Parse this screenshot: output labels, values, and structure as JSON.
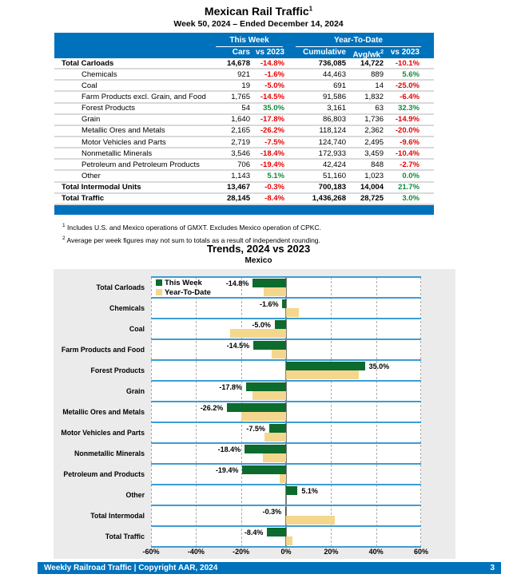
{
  "header": {
    "title": "Mexican Rail Traffic",
    "title_sup": "1",
    "subtitle": "Week 50, 2024 – Ended December 14, 2024"
  },
  "table": {
    "group_this_week": "This Week",
    "group_ytd": "Year-To-Date",
    "col_cars": "Cars",
    "col_vs2023_tw": "vs 2023",
    "col_cumulative": "Cumulative",
    "col_avgwk": "Avg/wk",
    "col_avgwk_sup": "2",
    "col_vs2023_ytd": "vs 2023",
    "rows": [
      {
        "label": "Total Carloads",
        "cars": "14,678",
        "tw": "-14.8%",
        "cum": "736,085",
        "avg": "14,722",
        "ytd": "-10.1%",
        "bold": true,
        "indent": false
      },
      {
        "label": "Chemicals",
        "cars": "921",
        "tw": "-1.6%",
        "cum": "44,463",
        "avg": "889",
        "ytd": "5.6%",
        "bold": false,
        "indent": true
      },
      {
        "label": "Coal",
        "cars": "19",
        "tw": "-5.0%",
        "cum": "691",
        "avg": "14",
        "ytd": "-25.0%",
        "bold": false,
        "indent": true
      },
      {
        "label": "Farm Products excl. Grain, and Food",
        "cars": "1,765",
        "tw": "-14.5%",
        "cum": "91,586",
        "avg": "1,832",
        "ytd": "-6.4%",
        "bold": false,
        "indent": true
      },
      {
        "label": "Forest Products",
        "cars": "54",
        "tw": "35.0%",
        "cum": "3,161",
        "avg": "63",
        "ytd": "32.3%",
        "bold": false,
        "indent": true
      },
      {
        "label": "Grain",
        "cars": "1,640",
        "tw": "-17.8%",
        "cum": "86,803",
        "avg": "1,736",
        "ytd": "-14.9%",
        "bold": false,
        "indent": true
      },
      {
        "label": "Metallic Ores and Metals",
        "cars": "2,165",
        "tw": "-26.2%",
        "cum": "118,124",
        "avg": "2,362",
        "ytd": "-20.0%",
        "bold": false,
        "indent": true
      },
      {
        "label": "Motor Vehicles and Parts",
        "cars": "2,719",
        "tw": "-7.5%",
        "cum": "124,740",
        "avg": "2,495",
        "ytd": "-9.6%",
        "bold": false,
        "indent": true
      },
      {
        "label": "Nonmetallic Minerals",
        "cars": "3,546",
        "tw": "-18.4%",
        "cum": "172,933",
        "avg": "3,459",
        "ytd": "-10.4%",
        "bold": false,
        "indent": true
      },
      {
        "label": "Petroleum and Petroleum Products",
        "cars": "706",
        "tw": "-19.4%",
        "cum": "42,424",
        "avg": "848",
        "ytd": "-2.7%",
        "bold": false,
        "indent": true
      },
      {
        "label": "Other",
        "cars": "1,143",
        "tw": "5.1%",
        "cum": "51,160",
        "avg": "1,023",
        "ytd": "0.0%",
        "bold": false,
        "indent": true
      },
      {
        "label": "Total Intermodal Units",
        "cars": "13,467",
        "tw": "-0.3%",
        "cum": "700,183",
        "avg": "14,004",
        "ytd": "21.7%",
        "bold": true,
        "indent": false
      },
      {
        "label": "Total Traffic",
        "cars": "28,145",
        "tw": "-8.4%",
        "cum": "1,436,268",
        "avg": "28,725",
        "ytd": "3.0%",
        "bold": true,
        "indent": false
      }
    ]
  },
  "footnotes": [
    {
      "sup": "1",
      "text": "Includes U.S. and Mexico operations of GMXT. Excludes Mexico operation of CPKC."
    },
    {
      "sup": "2",
      "text": "Average per week figures may not sum to totals as a result of independent rounding."
    }
  ],
  "chart_data": {
    "type": "bar",
    "orientation": "horizontal",
    "title": "Trends, 2024 vs 2023",
    "subtitle": "Mexico",
    "categories": [
      "Total Carloads",
      "Chemicals",
      "Coal",
      "Farm Products and Food",
      "Forest Products",
      "Grain",
      "Metallic Ores and Metals",
      "Motor Vehicles and Parts",
      "Nonmetallic Minerals",
      "Petroleum and Products",
      "Other",
      "Total Intermodal",
      "Total Traffic"
    ],
    "series": [
      {
        "name": "This Week",
        "color": "#0C6B2D",
        "values": [
          -14.8,
          -1.6,
          -5.0,
          -14.5,
          35.0,
          -17.8,
          -26.2,
          -7.5,
          -18.4,
          -19.4,
          5.1,
          -0.3,
          -8.4
        ]
      },
      {
        "name": "Year-To-Date",
        "color": "#F4D78D",
        "values": [
          -10.1,
          5.6,
          -25.0,
          -6.4,
          32.3,
          -14.9,
          -20.0,
          -9.6,
          -10.4,
          -2.7,
          0.0,
          21.7,
          3.0
        ]
      }
    ],
    "bar_labels": [
      "-14.8%",
      "-1.6%",
      "-5.0%",
      "-14.5%",
      "35.0%",
      "-17.8%",
      "-26.2%",
      "-7.5%",
      "-18.4%",
      "-19.4%",
      "5.1%",
      "-0.3%",
      "-8.4%"
    ],
    "xlim": [
      -60,
      60
    ],
    "tick_labels": [
      "-60%",
      "-40%",
      "-20%",
      "0%",
      "20%",
      "40%",
      "60%"
    ],
    "legend_position": "top-left",
    "grid": "dashed-vertical-every-20pct"
  },
  "footer": {
    "left": "Weekly Railroad Traffic | Copyright AAR, 2024",
    "page": "3"
  },
  "colors": {
    "header_blue": "#0072BC",
    "row_line_blue": "#3E9CD4",
    "panel_gray": "#EBEBEB",
    "negative_red": "#E80000",
    "positive_green": "#0E8C3A",
    "bar_green": "#0C6B2D",
    "bar_tan": "#F4D78D"
  }
}
